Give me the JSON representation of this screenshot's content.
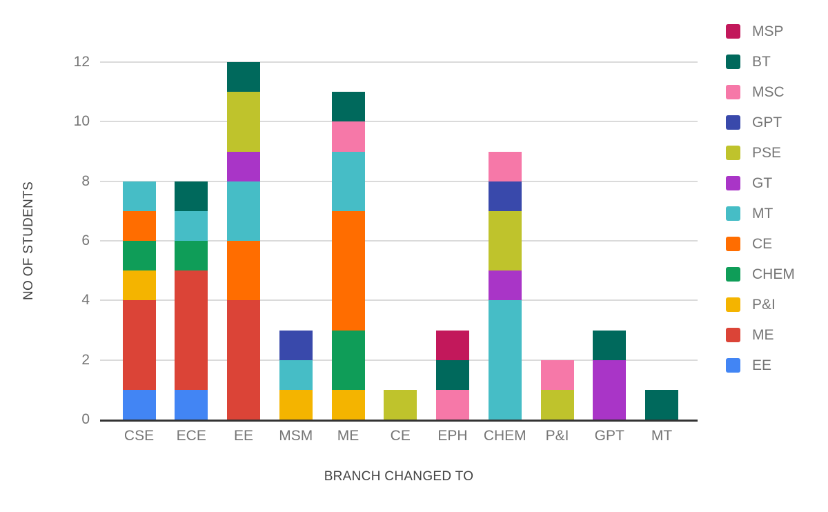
{
  "figure": {
    "background_color": "#ffffff",
    "axis_line_color": "#333333",
    "gridline_color": "#dadada",
    "tick_label_color": "#757575",
    "axis_title_color": "#424242"
  },
  "chart_data": {
    "type": "bar",
    "stacked": true,
    "title": "",
    "xlabel": "BRANCH CHANGED TO",
    "ylabel": "NO OF STUDENTS",
    "categories": [
      "CSE",
      "ECE",
      "EE",
      "MSM",
      "ME",
      "CE",
      "EPH",
      "CHEM",
      "P&I",
      "GPT",
      "MT"
    ],
    "y_ticks": [
      0,
      2,
      4,
      6,
      8,
      10,
      12
    ],
    "ylim": [
      0,
      12
    ],
    "grid": true,
    "legend_position": "right",
    "legend_order": "top-to-bottom is reverse of series stacking order",
    "series": [
      {
        "name": "EE",
        "color": "#4285F4",
        "values": [
          1,
          1,
          0,
          0,
          0,
          0,
          0,
          0,
          0,
          0,
          0
        ]
      },
      {
        "name": "ME",
        "color": "#DB4437",
        "values": [
          3,
          4,
          4,
          0,
          0,
          0,
          0,
          0,
          0,
          0,
          0
        ]
      },
      {
        "name": "P&I",
        "color": "#F4B400",
        "values": [
          1,
          0,
          0,
          1,
          1,
          0,
          0,
          0,
          0,
          0,
          0
        ]
      },
      {
        "name": "CHEM",
        "color": "#0F9D58",
        "values": [
          1,
          1,
          0,
          0,
          2,
          0,
          0,
          0,
          0,
          0,
          0
        ]
      },
      {
        "name": "CE",
        "color": "#FF6D00",
        "values": [
          1,
          0,
          2,
          0,
          4,
          0,
          0,
          0,
          0,
          0,
          0
        ]
      },
      {
        "name": "MT",
        "color": "#46BDC6",
        "values": [
          1,
          1,
          2,
          1,
          2,
          0,
          0,
          4,
          0,
          0,
          0
        ]
      },
      {
        "name": "GT",
        "color": "#A935C7",
        "values": [
          0,
          0,
          1,
          0,
          0,
          0,
          0,
          1,
          0,
          2,
          0
        ]
      },
      {
        "name": "PSE",
        "color": "#BFC32C",
        "values": [
          0,
          0,
          2,
          0,
          0,
          1,
          0,
          2,
          1,
          0,
          0
        ]
      },
      {
        "name": "GPT",
        "color": "#3949AB",
        "values": [
          0,
          0,
          0,
          1,
          0,
          0,
          0,
          1,
          0,
          0,
          0
        ]
      },
      {
        "name": "MSC",
        "color": "#F678A8",
        "values": [
          0,
          0,
          0,
          0,
          1,
          0,
          1,
          1,
          1,
          0,
          0
        ]
      },
      {
        "name": "BT",
        "color": "#00695C",
        "values": [
          0,
          1,
          1,
          0,
          1,
          0,
          1,
          0,
          0,
          1,
          1
        ]
      },
      {
        "name": "MSP",
        "color": "#C2185B",
        "values": [
          0,
          0,
          0,
          0,
          0,
          0,
          1,
          0,
          0,
          0,
          0
        ]
      }
    ],
    "category_totals": [
      8,
      8,
      12,
      3,
      11,
      1,
      3,
      9,
      2,
      3,
      1
    ]
  }
}
